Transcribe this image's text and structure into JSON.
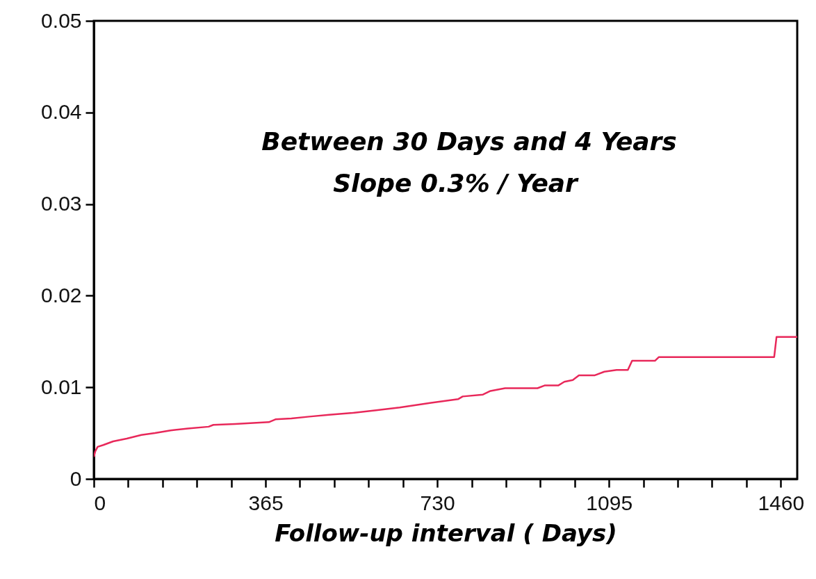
{
  "chart_data": {
    "type": "line",
    "xlabel": "Follow-up interval ( Days)",
    "annotations": [
      "Between 30 Days and 4 Years",
      "Slope 0.3% / Year"
    ],
    "x": [
      0,
      3,
      8,
      20,
      41,
      70,
      101,
      130,
      163,
      200,
      244,
      254,
      300,
      372,
      386,
      420,
      458,
      500,
      550,
      600,
      650,
      717,
      774,
      784,
      827,
      843,
      874,
      943,
      958,
      987,
      1000,
      1018,
      1031,
      1064,
      1085,
      1111,
      1135,
      1144,
      1193,
      1201,
      1446,
      1451,
      1495
    ],
    "series": [
      {
        "color": "#e8285a",
        "values": [
          0.0024,
          0.003,
          0.0035,
          0.0037,
          0.0041,
          0.0044,
          0.0048,
          0.005,
          0.0053,
          0.0055,
          0.0057,
          0.0059,
          0.006,
          0.0062,
          0.0065,
          0.0066,
          0.0068,
          0.007,
          0.0072,
          0.0075,
          0.0078,
          0.0083,
          0.0087,
          0.009,
          0.0092,
          0.0096,
          0.0099,
          0.0099,
          0.0102,
          0.0102,
          0.0106,
          0.0108,
          0.0113,
          0.0113,
          0.0117,
          0.0119,
          0.0119,
          0.0129,
          0.0129,
          0.0133,
          0.0133,
          0.0155,
          0.0155
        ]
      }
    ],
    "xlim": [
      0,
      1495
    ],
    "ylim": [
      0,
      0.05
    ],
    "xticks": [
      0,
      {
        "value": 73,
        "label": null
      },
      {
        "value": 146,
        "label": null
      },
      {
        "value": 219,
        "label": null
      },
      {
        "value": 292,
        "label": null
      },
      365,
      {
        "value": 438,
        "label": null
      },
      {
        "value": 511,
        "label": null
      },
      {
        "value": 584,
        "label": null
      },
      {
        "value": 657,
        "label": null
      },
      730,
      {
        "value": 803,
        "label": null
      },
      {
        "value": 876,
        "label": null
      },
      {
        "value": 949,
        "label": null
      },
      {
        "value": 1022,
        "label": null
      },
      1095,
      {
        "value": 1168,
        "label": null
      },
      {
        "value": 1241,
        "label": null
      },
      {
        "value": 1314,
        "label": null
      },
      {
        "value": 1387,
        "label": null
      },
      1460
    ],
    "yticks": [
      0,
      0.01,
      0.02,
      0.03,
      0.04,
      0.05
    ],
    "grid": false,
    "marker": "none",
    "line_style": "solid"
  }
}
